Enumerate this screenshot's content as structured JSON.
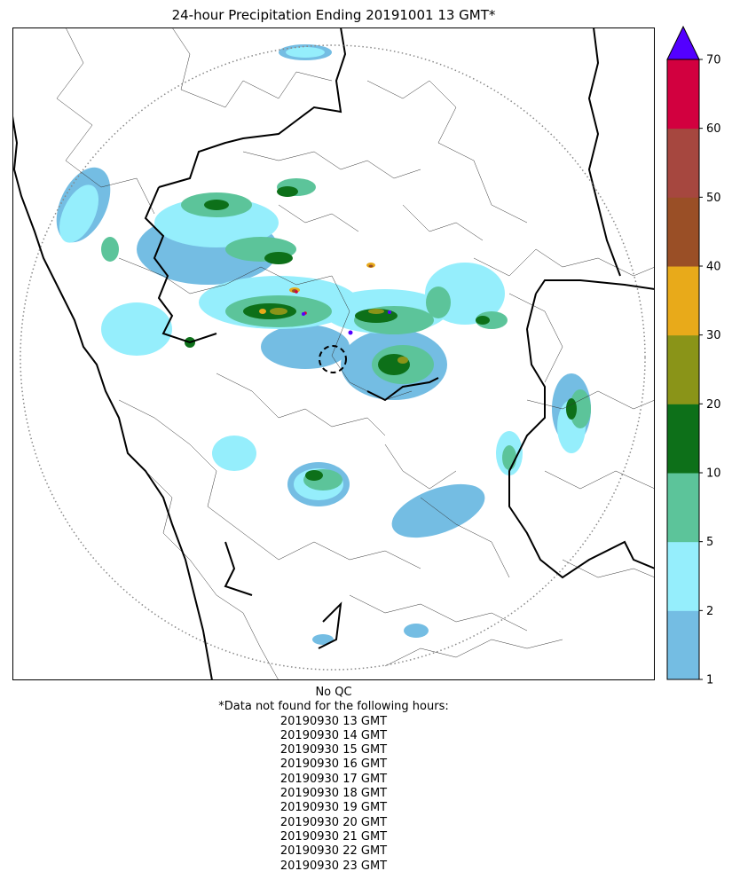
{
  "title": "24-hour Precipitation Ending 20191001 13 GMT*",
  "footer": {
    "qc": "No QC",
    "note": "*Data not found for the following hours:",
    "missing_hours": [
      "20190930 13 GMT",
      "20190930 14 GMT",
      "20190930 15 GMT",
      "20190930 16 GMT",
      "20190930 17 GMT",
      "20190930 18 GMT",
      "20190930 19 GMT",
      "20190930 20 GMT",
      "20190930 21 GMT",
      "20190930 22 GMT",
      "20190930 23 GMT"
    ]
  },
  "colorbar": {
    "bounds": [
      1,
      2,
      5,
      10,
      20,
      30,
      40,
      50,
      60,
      70
    ],
    "tick_labels": [
      "1",
      "2",
      "5",
      "10",
      "20",
      "30",
      "40",
      "50",
      "60",
      "70"
    ],
    "colors": [
      "#74bde3",
      "#95eefc",
      "#5cc49a",
      "#0d7019",
      "#8a9418",
      "#e8aa1a",
      "#9a4f26",
      "#a6473f",
      "#d2003f"
    ],
    "over_color": "#5300ff"
  }
}
